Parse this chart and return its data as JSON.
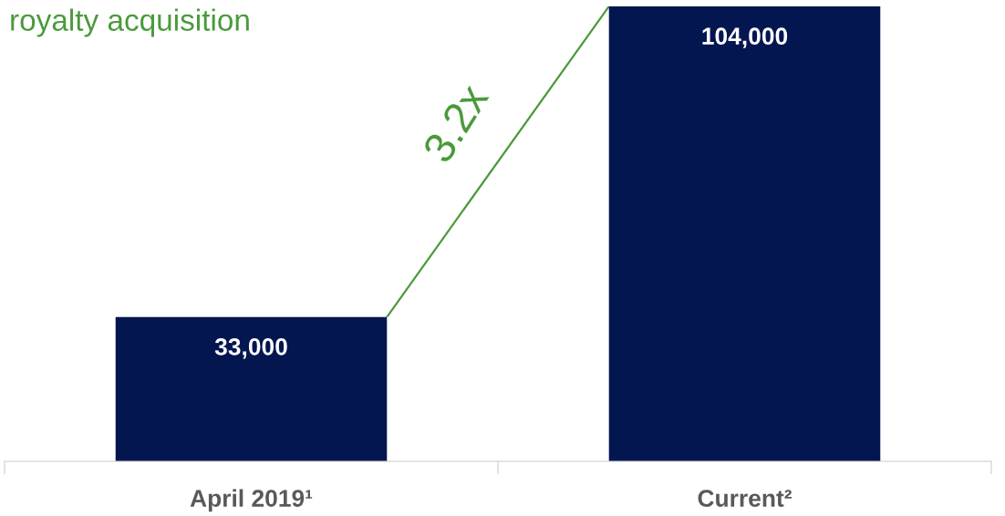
{
  "chart_data": {
    "type": "bar",
    "title": "royalty acquisition",
    "categories": [
      "April 2019¹",
      "Current²"
    ],
    "series": [
      {
        "color": "#041650",
        "values": [
          33000,
          104000
        ],
        "value_labels": [
          "33,000",
          "104,000"
        ]
      }
    ],
    "annotations": [
      "3.2x"
    ],
    "grid": false,
    "legend": false
  }
}
